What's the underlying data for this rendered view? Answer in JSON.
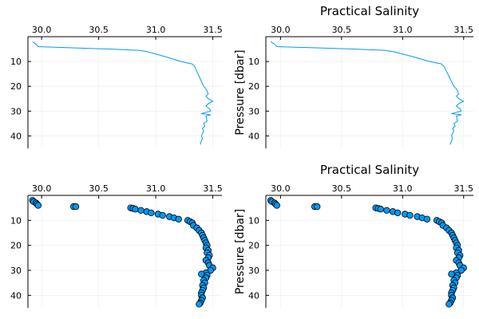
{
  "chart_data": [
    {
      "type": "line",
      "title": "",
      "xlabel": "",
      "ylabel": "",
      "xlim": [
        29.88,
        31.58
      ],
      "ylim": [
        45,
        0
      ],
      "xticks": [
        30.0,
        30.5,
        31.0,
        31.5
      ],
      "xtick_labels": [
        "30.0",
        "30.5",
        "31.0",
        "31.5"
      ],
      "yticks": [
        10,
        20,
        30,
        40
      ],
      "ytick_labels": [
        "10",
        "20",
        "30",
        "40"
      ],
      "grid": true,
      "legend": "none",
      "series": [
        {
          "name": "Practical Salinity",
          "color": "#009af9",
          "x": [
            29.92,
            29.95,
            29.97,
            30.6,
            30.85,
            30.92,
            31.0,
            31.08,
            31.15,
            31.22,
            31.32,
            31.34,
            31.36,
            31.38,
            31.4,
            31.42,
            31.44,
            31.45,
            31.46,
            31.44,
            31.46,
            31.5,
            31.46,
            31.44,
            31.47,
            31.48,
            31.4,
            31.48,
            31.44,
            31.45,
            31.42,
            31.43,
            31.41,
            31.42,
            31.4,
            31.41,
            31.4,
            31.39
          ],
          "y": [
            2,
            3,
            4,
            5,
            5.5,
            6,
            7,
            8,
            9,
            10,
            11,
            12,
            14,
            16,
            18,
            20,
            21,
            22,
            23,
            24,
            25,
            26,
            27,
            28,
            29,
            30,
            31,
            31.5,
            32,
            34,
            35,
            36,
            37,
            38,
            40,
            41,
            42,
            43.5
          ]
        }
      ]
    },
    {
      "type": "line",
      "title": "Practical Salinity",
      "xlabel": "",
      "ylabel": "Pressure [dbar]",
      "xlim": [
        29.88,
        31.58
      ],
      "ylim": [
        45,
        0
      ],
      "xticks": [
        30.0,
        30.5,
        31.0,
        31.5
      ],
      "xtick_labels": [
        "30.0",
        "30.5",
        "31.0",
        "31.5"
      ],
      "yticks": [
        10,
        20,
        30,
        40
      ],
      "ytick_labels": [
        "10",
        "20",
        "30",
        "40"
      ],
      "grid": true,
      "legend": "none",
      "series": [
        {
          "name": "Practical Salinity",
          "color": "#009af9",
          "x": [
            29.92,
            29.95,
            29.97,
            30.6,
            30.85,
            30.92,
            31.0,
            31.08,
            31.15,
            31.22,
            31.32,
            31.34,
            31.36,
            31.38,
            31.4,
            31.42,
            31.44,
            31.45,
            31.46,
            31.44,
            31.46,
            31.5,
            31.46,
            31.44,
            31.47,
            31.48,
            31.4,
            31.48,
            31.44,
            31.45,
            31.42,
            31.43,
            31.41,
            31.42,
            31.4,
            31.41,
            31.4,
            31.39
          ],
          "y": [
            2,
            3,
            4,
            5,
            5.5,
            6,
            7,
            8,
            9,
            10,
            11,
            12,
            14,
            16,
            18,
            20,
            21,
            22,
            23,
            24,
            25,
            26,
            27,
            28,
            29,
            30,
            31,
            31.5,
            32,
            34,
            35,
            36,
            37,
            38,
            40,
            41,
            42,
            43.5
          ]
        }
      ]
    },
    {
      "type": "scatter",
      "title": "",
      "xlabel": "",
      "ylabel": "",
      "xlim": [
        29.88,
        31.58
      ],
      "ylim": [
        45,
        0
      ],
      "xticks": [
        30.0,
        30.5,
        31.0,
        31.5
      ],
      "xtick_labels": [
        "30.0",
        "30.5",
        "31.0",
        "31.5"
      ],
      "yticks": [
        10,
        20,
        30,
        40
      ],
      "ytick_labels": [
        "10",
        "20",
        "30",
        "40"
      ],
      "grid": true,
      "legend": "none",
      "series": [
        {
          "name": "Practical Salinity",
          "color": "#009af9",
          "x": [
            29.92,
            29.93,
            29.95,
            29.96,
            29.97,
            30.28,
            30.3,
            30.78,
            30.8,
            30.82,
            30.87,
            30.92,
            30.96,
            31.02,
            31.06,
            31.12,
            31.16,
            31.2,
            31.28,
            31.3,
            31.32,
            31.33,
            31.36,
            31.38,
            31.4,
            31.41,
            31.42,
            31.43,
            31.44,
            31.45,
            31.44,
            31.46,
            31.45,
            31.47,
            31.46,
            31.44,
            31.46,
            31.47,
            31.5,
            31.48,
            31.44,
            31.4,
            31.45,
            31.44,
            31.42,
            31.43,
            31.41,
            31.42,
            31.41,
            31.4,
            31.4,
            31.41,
            31.4,
            31.39,
            31.38
          ],
          "y": [
            2,
            2.5,
            3,
            3.5,
            4,
            4.5,
            4.5,
            5,
            5.2,
            5.5,
            6,
            6.5,
            7,
            7.5,
            8,
            8.5,
            9,
            9.5,
            10,
            10.5,
            11,
            12,
            13,
            14,
            15,
            16,
            17,
            18,
            19,
            20,
            21,
            22,
            23,
            24,
            25,
            26,
            27,
            28,
            29,
            30,
            31,
            31.5,
            32,
            33,
            34,
            35,
            36,
            37,
            38,
            39,
            40,
            41,
            42,
            43,
            43.5
          ]
        }
      ]
    },
    {
      "type": "scatter",
      "title": "Practical Salinity",
      "xlabel": "",
      "ylabel": "Pressure [dbar]",
      "xlim": [
        29.88,
        31.58
      ],
      "ylim": [
        45,
        0
      ],
      "xticks": [
        30.0,
        30.5,
        31.0,
        31.5
      ],
      "xtick_labels": [
        "30.0",
        "30.5",
        "31.0",
        "31.5"
      ],
      "yticks": [
        10,
        20,
        30,
        40
      ],
      "ytick_labels": [
        "10",
        "20",
        "30",
        "40"
      ],
      "grid": true,
      "legend": "none",
      "series": [
        {
          "name": "Practical Salinity",
          "color": "#009af9",
          "x": [
            29.92,
            29.93,
            29.95,
            29.96,
            29.97,
            30.28,
            30.3,
            30.78,
            30.8,
            30.82,
            30.87,
            30.92,
            30.96,
            31.02,
            31.06,
            31.12,
            31.16,
            31.2,
            31.28,
            31.3,
            31.32,
            31.33,
            31.36,
            31.38,
            31.4,
            31.41,
            31.42,
            31.43,
            31.44,
            31.45,
            31.44,
            31.46,
            31.45,
            31.47,
            31.46,
            31.44,
            31.46,
            31.47,
            31.5,
            31.48,
            31.44,
            31.4,
            31.45,
            31.44,
            31.42,
            31.43,
            31.41,
            31.42,
            31.41,
            31.4,
            31.4,
            31.41,
            31.4,
            31.39,
            31.38
          ],
          "y": [
            2,
            2.5,
            3,
            3.5,
            4,
            4.5,
            4.5,
            5,
            5.2,
            5.5,
            6,
            6.5,
            7,
            7.5,
            8,
            8.5,
            9,
            9.5,
            10,
            10.5,
            11,
            12,
            13,
            14,
            15,
            16,
            17,
            18,
            19,
            20,
            21,
            22,
            23,
            24,
            25,
            26,
            27,
            28,
            29,
            30,
            31,
            31.5,
            32,
            33,
            34,
            35,
            36,
            37,
            38,
            39,
            40,
            41,
            42,
            43,
            43.5
          ]
        }
      ]
    }
  ]
}
